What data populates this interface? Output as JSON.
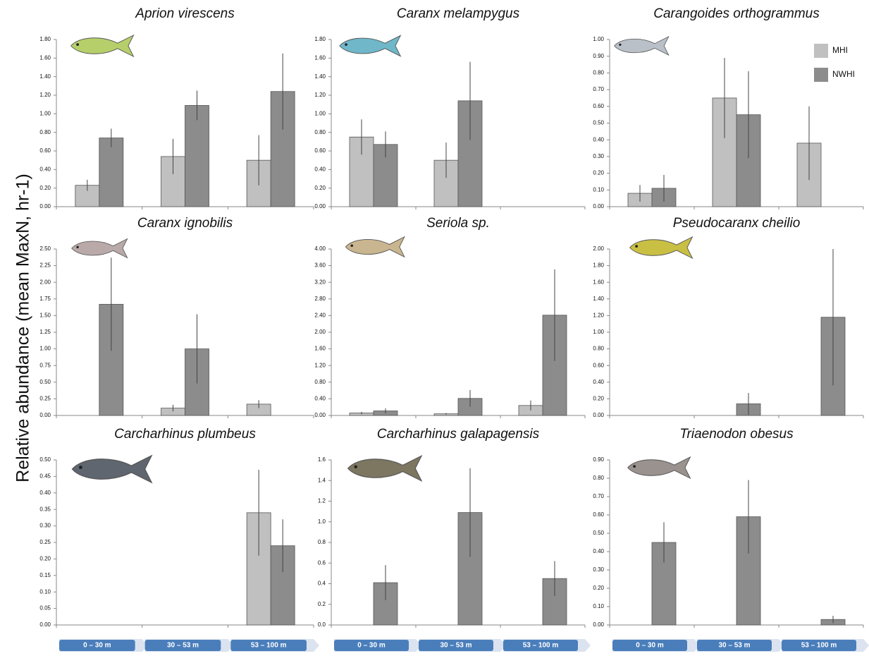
{
  "ylabel": "Relative abundance (mean MaxN, hr-1)",
  "chart_data": [
    {
      "type": "bar",
      "title": "Aprion virescens",
      "categories": [
        null,
        null,
        null
      ],
      "series": [
        {
          "color": "#c0c0c0",
          "values": [
            0.23,
            0.54,
            0.5
          ],
          "errors": [
            0.06,
            0.19,
            0.27
          ]
        },
        {
          "color": "#8c8c8c",
          "values": [
            0.74,
            1.09,
            1.24
          ],
          "errors": [
            0.1,
            0.16,
            0.41
          ]
        }
      ],
      "ylim": [
        0,
        1.8
      ],
      "yticks": [
        {
          "value": 0,
          "label": "0.00"
        },
        {
          "value": 0.2,
          "label": "0.20"
        },
        {
          "value": 0.4,
          "label": "0.40"
        },
        {
          "value": 0.6,
          "label": "0.60"
        },
        {
          "value": 0.8,
          "label": "0.80"
        },
        {
          "value": 1,
          "label": "1.00"
        },
        {
          "value": 1.2,
          "label": "1.20"
        },
        {
          "value": 1.4,
          "label": "1.40"
        },
        {
          "value": 1.6,
          "label": "1.60"
        },
        {
          "value": 1.8,
          "label": "1.80"
        }
      ]
    },
    {
      "type": "bar",
      "title": "Caranx melampygus",
      "categories": [
        null,
        null,
        null
      ],
      "series": [
        {
          "color": "#c0c0c0",
          "values": [
            0.75,
            0.5,
            null
          ],
          "errors": [
            0.19,
            0.19,
            null
          ]
        },
        {
          "color": "#8c8c8c",
          "values": [
            0.67,
            1.14,
            null
          ],
          "errors": [
            0.14,
            0.42,
            null
          ]
        }
      ],
      "ylim": [
        0,
        1.8
      ],
      "yticks": [
        {
          "value": 0,
          "label": "0.00"
        },
        {
          "value": 0.2,
          "label": "0.20"
        },
        {
          "value": 0.4,
          "label": "0.40"
        },
        {
          "value": 0.6,
          "label": "0.60"
        },
        {
          "value": 0.8,
          "label": "0.80"
        },
        {
          "value": 1,
          "label": "1.00"
        },
        {
          "value": 1.2,
          "label": "1.20"
        },
        {
          "value": 1.4,
          "label": "1.40"
        },
        {
          "value": 1.6,
          "label": "1.60"
        },
        {
          "value": 1.8,
          "label": "1.80"
        }
      ]
    },
    {
      "type": "bar",
      "title": "Carangoides orthogrammus",
      "categories": [
        null,
        null,
        null
      ],
      "legend": "top-right",
      "series": [
        {
          "name": "MHI",
          "color": "#c0c0c0",
          "values": [
            0.08,
            0.65,
            0.38
          ],
          "errors": [
            0.05,
            0.24,
            0.22
          ]
        },
        {
          "name": "NWHI",
          "color": "#8c8c8c",
          "values": [
            0.11,
            0.55,
            null
          ],
          "errors": [
            0.08,
            0.26,
            null
          ]
        }
      ],
      "ylim": [
        0,
        1
      ],
      "yticks": [
        {
          "value": 0,
          "label": "0.00"
        },
        {
          "value": 0.1,
          "label": "0.10"
        },
        {
          "value": 0.2,
          "label": "0.20"
        },
        {
          "value": 0.3,
          "label": "0.30"
        },
        {
          "value": 0.4,
          "label": "0.40"
        },
        {
          "value": 0.5,
          "label": "0.50"
        },
        {
          "value": 0.6,
          "label": "0.60"
        },
        {
          "value": 0.7,
          "label": "0.70"
        },
        {
          "value": 0.8,
          "label": "0.80"
        },
        {
          "value": 0.9,
          "label": "0.90"
        },
        {
          "value": 1,
          "label": "1.00"
        }
      ]
    },
    {
      "type": "bar",
      "title": "Caranx ignobilis",
      "categories": [
        null,
        null,
        null
      ],
      "series": [
        {
          "color": "#c0c0c0",
          "values": [
            null,
            0.11,
            0.17
          ],
          "errors": [
            null,
            0.05,
            0.06
          ]
        },
        {
          "color": "#8c8c8c",
          "values": [
            1.67,
            1.0,
            null
          ],
          "errors": [
            0.7,
            0.52,
            null
          ]
        }
      ],
      "ylim": [
        0,
        2.5
      ],
      "yticks": [
        {
          "value": 0,
          "label": "0.00"
        },
        {
          "value": 0.25,
          "label": "0.25"
        },
        {
          "value": 0.5,
          "label": "0.50"
        },
        {
          "value": 0.75,
          "label": "0.75"
        },
        {
          "value": 1,
          "label": "1.00"
        },
        {
          "value": 1.25,
          "label": "1.25"
        },
        {
          "value": 1.5,
          "label": "1.50"
        },
        {
          "value": 1.75,
          "label": "1.75"
        },
        {
          "value": 2,
          "label": "2.00"
        },
        {
          "value": 2.25,
          "label": "2.25"
        },
        {
          "value": 2.5,
          "label": "2.50"
        }
      ]
    },
    {
      "type": "bar",
      "title": "Seriola sp.",
      "categories": [
        null,
        null,
        null
      ],
      "series": [
        {
          "color": "#c0c0c0",
          "values": [
            0.06,
            0.04,
            0.24
          ],
          "errors": [
            0.03,
            0.02,
            0.12
          ]
        },
        {
          "color": "#8c8c8c",
          "values": [
            0.11,
            0.41,
            2.41
          ],
          "errors": [
            0.06,
            0.2,
            1.1
          ]
        }
      ],
      "ylim": [
        0,
        4
      ],
      "yticks": [
        {
          "value": 0,
          "label": "0.00"
        },
        {
          "value": 0.4,
          "label": "0.40"
        },
        {
          "value": 0.8,
          "label": "0.80"
        },
        {
          "value": 1.2,
          "label": "1.20"
        },
        {
          "value": 1.6,
          "label": "1.60"
        },
        {
          "value": 2,
          "label": "2.00"
        },
        {
          "value": 2.4,
          "label": "2.40"
        },
        {
          "value": 2.8,
          "label": "2.80"
        },
        {
          "value": 3.2,
          "label": "3.20"
        },
        {
          "value": 3.6,
          "label": "3.60"
        },
        {
          "value": 4,
          "label": "4.00"
        }
      ]
    },
    {
      "type": "bar",
      "title": "Pseudocaranx cheilio",
      "categories": [
        null,
        null,
        null
      ],
      "series": [
        {
          "color": "#c0c0c0",
          "values": [
            null,
            null,
            null
          ],
          "errors": [
            null,
            null,
            null
          ]
        },
        {
          "color": "#8c8c8c",
          "values": [
            null,
            0.14,
            1.18
          ],
          "errors": [
            null,
            0.13,
            0.82
          ]
        }
      ],
      "ylim": [
        0,
        2
      ],
      "yticks": [
        {
          "value": 0,
          "label": "0.00"
        },
        {
          "value": 0.2,
          "label": "0.20"
        },
        {
          "value": 0.4,
          "label": "0.40"
        },
        {
          "value": 0.6,
          "label": "0.60"
        },
        {
          "value": 0.8,
          "label": "0.80"
        },
        {
          "value": 1,
          "label": "1.00"
        },
        {
          "value": 1.2,
          "label": "1.20"
        },
        {
          "value": 1.4,
          "label": "1.40"
        },
        {
          "value": 1.6,
          "label": "1.60"
        },
        {
          "value": 1.8,
          "label": "1.80"
        },
        {
          "value": 2,
          "label": "2.00"
        }
      ]
    },
    {
      "type": "bar",
      "title": "Carcharhinus plumbeus",
      "categories": [
        "0 – 30 m",
        "30 – 53 m",
        "53 – 100 m"
      ],
      "series": [
        {
          "color": "#c0c0c0",
          "values": [
            null,
            null,
            0.34
          ],
          "errors": [
            null,
            null,
            0.13
          ]
        },
        {
          "color": "#8c8c8c",
          "values": [
            null,
            null,
            0.24
          ],
          "errors": [
            null,
            null,
            0.08
          ]
        }
      ],
      "ylim": [
        0,
        0.5
      ],
      "yticks": [
        {
          "value": 0,
          "label": "0.00"
        },
        {
          "value": 0.05,
          "label": "0.05"
        },
        {
          "value": 0.1,
          "label": "0.10"
        },
        {
          "value": 0.15,
          "label": "0.15"
        },
        {
          "value": 0.2,
          "label": "0.20"
        },
        {
          "value": 0.25,
          "label": "0.25"
        },
        {
          "value": 0.3,
          "label": "0.30"
        },
        {
          "value": 0.35,
          "label": "0.35"
        },
        {
          "value": 0.4,
          "label": "0.40"
        },
        {
          "value": 0.45,
          "label": "0.45"
        },
        {
          "value": 0.5,
          "label": "0.50"
        }
      ]
    },
    {
      "type": "bar",
      "title": "Carcharhinus galapagensis",
      "categories": [
        "0 – 30 m",
        "30 – 53 m",
        "53 – 100 m"
      ],
      "series": [
        {
          "color": "#c0c0c0",
          "values": [
            null,
            null,
            null
          ],
          "errors": [
            null,
            null,
            null
          ]
        },
        {
          "color": "#8c8c8c",
          "values": [
            0.41,
            1.09,
            0.45
          ],
          "errors": [
            0.17,
            0.43,
            0.17
          ]
        }
      ],
      "ylim": [
        0,
        1.6
      ],
      "yticks": [
        {
          "value": 0,
          "label": "0.0"
        },
        0.2,
        0.4,
        0.6,
        0.8,
        {
          "value": 1,
          "label": "1.0"
        },
        1.2,
        1.4,
        1.6
      ]
    },
    {
      "type": "bar",
      "title": "Triaenodon obesus",
      "categories": [
        "0 – 30 m",
        "30 – 53 m",
        "53 – 100 m"
      ],
      "series": [
        {
          "color": "#c0c0c0",
          "values": [
            null,
            null,
            null
          ],
          "errors": [
            null,
            null,
            null
          ]
        },
        {
          "color": "#8c8c8c",
          "values": [
            0.45,
            0.59,
            0.03
          ],
          "errors": [
            0.11,
            0.2,
            0.02
          ]
        }
      ],
      "ylim": [
        0,
        0.9
      ],
      "yticks": [
        {
          "value": 0,
          "label": "0.00"
        },
        {
          "value": 0.1,
          "label": "0.10"
        },
        {
          "value": 0.2,
          "label": "0.20"
        },
        {
          "value": 0.3,
          "label": "0.30"
        },
        {
          "value": 0.4,
          "label": "0.40"
        },
        {
          "value": 0.5,
          "label": "0.50"
        },
        {
          "value": 0.6,
          "label": "0.60"
        },
        {
          "value": 0.7,
          "label": "0.70"
        },
        {
          "value": 0.8,
          "label": "0.80"
        },
        {
          "value": 0.9,
          "label": "0.90"
        }
      ]
    }
  ]
}
